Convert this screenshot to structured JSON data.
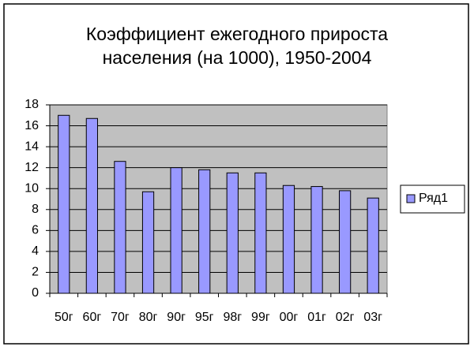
{
  "chart_data": {
    "type": "bar",
    "title": [
      "Коэффициент ежегодного прироста",
      "населения (на 1000), 1950-2004"
    ],
    "categories": [
      "50г",
      "60г",
      "70г",
      "80г",
      "90г",
      "95г",
      "98г",
      "99г",
      "00г",
      "01г",
      "02г",
      "03г"
    ],
    "series": [
      {
        "name": "Ряд1",
        "color": "#9999ff",
        "values": [
          17.0,
          16.7,
          12.6,
          9.7,
          12.0,
          11.8,
          11.5,
          11.5,
          10.3,
          10.2,
          9.8,
          9.1
        ]
      }
    ],
    "ylim": [
      0,
      18
    ],
    "yticks": [
      0,
      2,
      4,
      6,
      8,
      10,
      12,
      14,
      16,
      18
    ],
    "grid": true,
    "legend": "right"
  }
}
